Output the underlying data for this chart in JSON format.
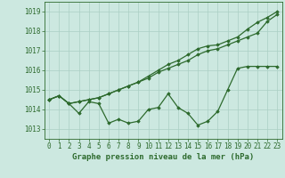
{
  "title": "Graphe pression niveau de la mer (hPa)",
  "xlabel_hours": [
    0,
    1,
    2,
    3,
    4,
    5,
    6,
    7,
    8,
    9,
    10,
    11,
    12,
    13,
    14,
    15,
    16,
    17,
    18,
    19,
    20,
    21,
    22,
    23
  ],
  "line1": [
    1014.5,
    1014.7,
    1014.3,
    1013.8,
    1014.4,
    1014.3,
    1013.3,
    1013.5,
    1013.3,
    1013.4,
    1014.0,
    1014.1,
    1014.8,
    1014.1,
    1013.8,
    1013.2,
    1013.4,
    1013.9,
    1015.0,
    1016.1,
    1016.2,
    1016.2,
    1016.2,
    1016.2
  ],
  "line2": [
    1014.5,
    1014.7,
    1014.3,
    1014.4,
    1014.5,
    1014.6,
    1014.8,
    1015.0,
    1015.2,
    1015.4,
    1015.6,
    1015.9,
    1016.1,
    1016.3,
    1016.5,
    1016.8,
    1017.0,
    1017.1,
    1017.3,
    1017.5,
    1017.7,
    1017.9,
    1018.5,
    1018.85
  ],
  "line3": [
    1014.5,
    1014.7,
    1014.3,
    1014.4,
    1014.5,
    1014.6,
    1014.8,
    1015.0,
    1015.2,
    1015.4,
    1015.7,
    1016.0,
    1016.3,
    1016.5,
    1016.8,
    1017.1,
    1017.25,
    1017.3,
    1017.5,
    1017.7,
    1018.1,
    1018.45,
    1018.7,
    1019.0
  ],
  "line_color": "#2d6a2d",
  "bg_color": "#cce8e0",
  "grid_color": "#aacfc4",
  "ylim": [
    1012.5,
    1019.5
  ],
  "yticks": [
    1013,
    1014,
    1015,
    1016,
    1017,
    1018,
    1019
  ],
  "marker": "D",
  "marker_size": 1.8,
  "lw": 0.9,
  "label_fontsize": 5.5,
  "title_fontsize": 6.5
}
